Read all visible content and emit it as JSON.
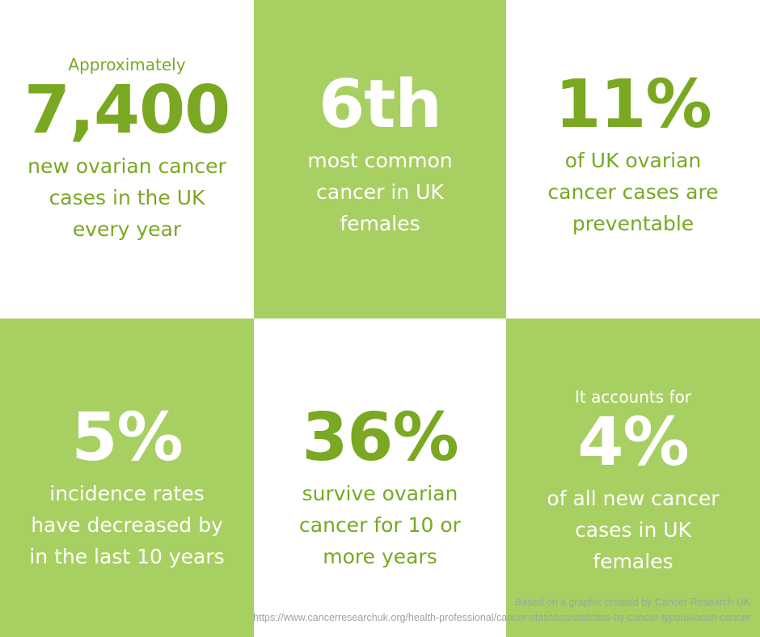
{
  "stats": [
    {
      "pre": "Approximately",
      "big": "7,400",
      "desc": "new ovarian cancer cases in the UK every year"
    },
    {
      "pre": "",
      "big": "6th",
      "desc": "most common cancer in UK females"
    },
    {
      "pre": "",
      "big": "11%",
      "desc": "of UK ovarian cancer cases are preventable"
    },
    {
      "pre": "",
      "big": "5%",
      "desc": "incidence rates have decreased by in the last 10 years"
    },
    {
      "pre": "",
      "big": "36%",
      "desc": "survive ovarian cancer for 10 or more years"
    },
    {
      "pre": "It accounts for",
      "big": "4%",
      "desc": "of all new cancer cases in UK females"
    }
  ],
  "credit": {
    "line1": "Based on a graphic created by Cancer Research UK",
    "line2": "https://www.cancerresearchuk.org/health-professional/cancer-statistics/statistics-by-cancer-type/ovarian-cancer"
  },
  "colors": {
    "accent_green": "#7aa823",
    "panel_green": "#a8cf62",
    "white": "#ffffff"
  }
}
